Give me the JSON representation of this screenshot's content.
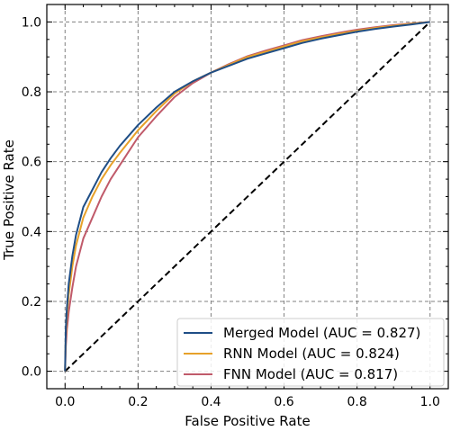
{
  "chart_data": {
    "type": "line",
    "xlabel": "False Positive Rate",
    "ylabel": "True Positive Rate",
    "xlim": [
      -0.05,
      1.05
    ],
    "ylim": [
      -0.05,
      1.05
    ],
    "xticks": [
      0.0,
      0.2,
      0.4,
      0.6,
      0.8,
      1.0
    ],
    "yticks": [
      0.0,
      0.2,
      0.4,
      0.6,
      0.8,
      1.0
    ],
    "xtick_labels": [
      "0.0",
      "0.2",
      "0.4",
      "0.6",
      "0.8",
      "1.0"
    ],
    "ytick_labels": [
      "0.0",
      "0.2",
      "0.4",
      "0.6",
      "0.8",
      "1.0"
    ],
    "grid": true,
    "legend_position": "bottom-right",
    "diagonal_reference": {
      "x": [
        0,
        1
      ],
      "y": [
        0,
        1
      ],
      "color": "#000000",
      "style": "dashed"
    },
    "series": [
      {
        "name": "Merged Model (AUC = 0.827)",
        "color": "#1f4e86",
        "x": [
          0,
          0.002,
          0.005,
          0.01,
          0.02,
          0.03,
          0.05,
          0.075,
          0.1,
          0.125,
          0.15,
          0.2,
          0.25,
          0.3,
          0.35,
          0.4,
          0.45,
          0.5,
          0.55,
          0.6,
          0.65,
          0.7,
          0.75,
          0.8,
          0.85,
          0.9,
          0.95,
          1.0
        ],
        "y": [
          0,
          0.12,
          0.18,
          0.25,
          0.33,
          0.39,
          0.47,
          0.52,
          0.57,
          0.61,
          0.645,
          0.705,
          0.755,
          0.8,
          0.83,
          0.855,
          0.875,
          0.895,
          0.91,
          0.925,
          0.94,
          0.952,
          0.962,
          0.972,
          0.98,
          0.987,
          0.993,
          1.0
        ]
      },
      {
        "name": "RNN Model (AUC = 0.824)",
        "color": "#e7a12a",
        "x": [
          0,
          0.002,
          0.005,
          0.01,
          0.02,
          0.03,
          0.05,
          0.075,
          0.1,
          0.125,
          0.15,
          0.2,
          0.25,
          0.3,
          0.35,
          0.4,
          0.45,
          0.5,
          0.55,
          0.6,
          0.65,
          0.7,
          0.75,
          0.8,
          0.85,
          0.9,
          0.95,
          1.0
        ],
        "y": [
          0,
          0.1,
          0.16,
          0.22,
          0.3,
          0.36,
          0.44,
          0.5,
          0.55,
          0.59,
          0.625,
          0.69,
          0.745,
          0.795,
          0.83,
          0.855,
          0.878,
          0.9,
          0.915,
          0.93,
          0.945,
          0.956,
          0.966,
          0.975,
          0.983,
          0.989,
          0.995,
          1.0
        ]
      },
      {
        "name": "FNN Model (AUC = 0.817)",
        "color": "#c05a6a",
        "x": [
          0,
          0.002,
          0.005,
          0.01,
          0.02,
          0.03,
          0.05,
          0.075,
          0.1,
          0.125,
          0.15,
          0.2,
          0.25,
          0.3,
          0.35,
          0.4,
          0.45,
          0.5,
          0.55,
          0.6,
          0.65,
          0.7,
          0.75,
          0.8,
          0.85,
          0.9,
          0.95,
          1.0
        ],
        "y": [
          0,
          0.07,
          0.12,
          0.17,
          0.24,
          0.3,
          0.38,
          0.44,
          0.5,
          0.55,
          0.59,
          0.67,
          0.73,
          0.785,
          0.825,
          0.855,
          0.88,
          0.902,
          0.918,
          0.933,
          0.948,
          0.959,
          0.969,
          0.978,
          0.985,
          0.991,
          0.996,
          1.0
        ]
      }
    ]
  }
}
